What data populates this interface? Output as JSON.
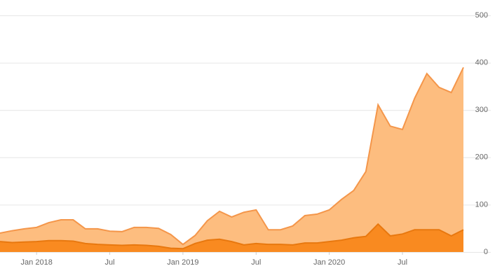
{
  "chart_data": {
    "type": "area",
    "x": [
      "2017-10",
      "2017-11",
      "2017-12",
      "2018-01",
      "2018-02",
      "2018-03",
      "2018-04",
      "2018-05",
      "2018-06",
      "2018-07",
      "2018-08",
      "2018-09",
      "2018-10",
      "2018-11",
      "2018-12",
      "2019-01",
      "2019-02",
      "2019-03",
      "2019-04",
      "2019-05",
      "2019-06",
      "2019-07",
      "2019-08",
      "2019-09",
      "2019-10",
      "2019-11",
      "2019-12",
      "2020-01",
      "2020-02",
      "2020-03",
      "2020-04",
      "2020-05",
      "2020-06",
      "2020-07",
      "2020-08",
      "2020-09",
      "2020-10",
      "2020-11",
      "2020-12"
    ],
    "series": [
      {
        "color": "#fdbd7f",
        "line_color": "#f4964a",
        "values": [
          40,
          45,
          49,
          52,
          62,
          68,
          68,
          49,
          49,
          44,
          43,
          52,
          52,
          50,
          37,
          16,
          35,
          66,
          86,
          74,
          84,
          89,
          47,
          47,
          55,
          77,
          80,
          89,
          111,
          130,
          170,
          311,
          266,
          259,
          325,
          377,
          348,
          337,
          390
        ]
      },
      {
        "color": "#f98a20",
        "line_color": "#e8780f",
        "values": [
          22,
          20,
          21,
          22,
          24,
          24,
          23,
          18,
          16,
          15,
          14,
          15,
          14,
          12,
          8,
          7,
          18,
          25,
          27,
          22,
          15,
          18,
          16,
          16,
          15,
          19,
          19,
          22,
          25,
          30,
          33,
          59,
          34,
          38,
          47,
          47,
          47,
          34,
          47
        ]
      }
    ],
    "xlim": [
      "2017-10",
      "2020-12"
    ],
    "xticks": [
      {
        "value": "2018-01",
        "label": "Jan 2018"
      },
      {
        "value": "2018-07",
        "label": "Jul"
      },
      {
        "value": "2019-01",
        "label": "Jan 2019"
      },
      {
        "value": "2019-07",
        "label": "Jul"
      },
      {
        "value": "2020-01",
        "label": "Jan 2020"
      },
      {
        "value": "2020-07",
        "label": "Jul"
      }
    ],
    "ylim": [
      0,
      500
    ],
    "yticks": [
      0,
      100,
      200,
      300,
      400,
      500
    ],
    "grid": true
  }
}
